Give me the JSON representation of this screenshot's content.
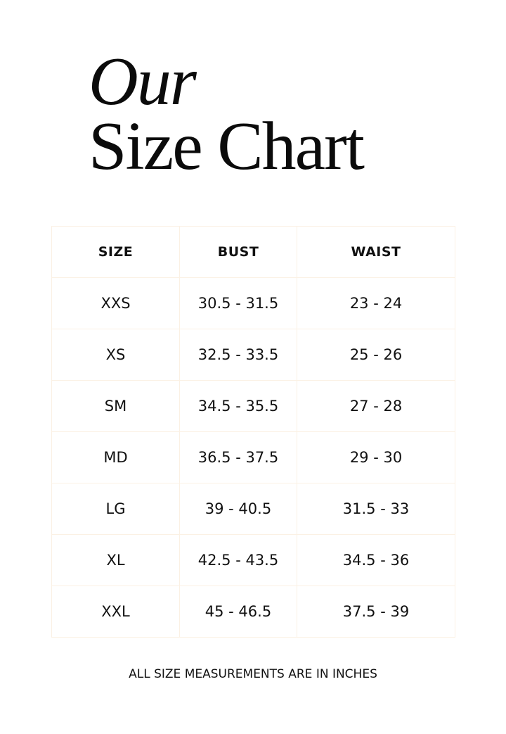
{
  "title": {
    "line1": "Our",
    "line2": "Size Chart"
  },
  "table": {
    "headers": [
      "SIZE",
      "BUST",
      "WAIST"
    ],
    "rows": [
      [
        "XXS",
        "30.5 - 31.5",
        "23 - 24"
      ],
      [
        "XS",
        "32.5 - 33.5",
        "25 - 26"
      ],
      [
        "SM",
        "34.5 - 35.5",
        "27 - 28"
      ],
      [
        "MD",
        "36.5 - 37.5",
        "29 - 30"
      ],
      [
        "LG",
        "39 - 40.5",
        "31.5 - 33"
      ],
      [
        "XL",
        "42.5 - 43.5",
        "34.5 - 36"
      ],
      [
        "XXL",
        "45 - 46.5",
        "37.5 - 39"
      ]
    ]
  },
  "footnote": "ALL SIZE MEASUREMENTS ARE IN INCHES"
}
